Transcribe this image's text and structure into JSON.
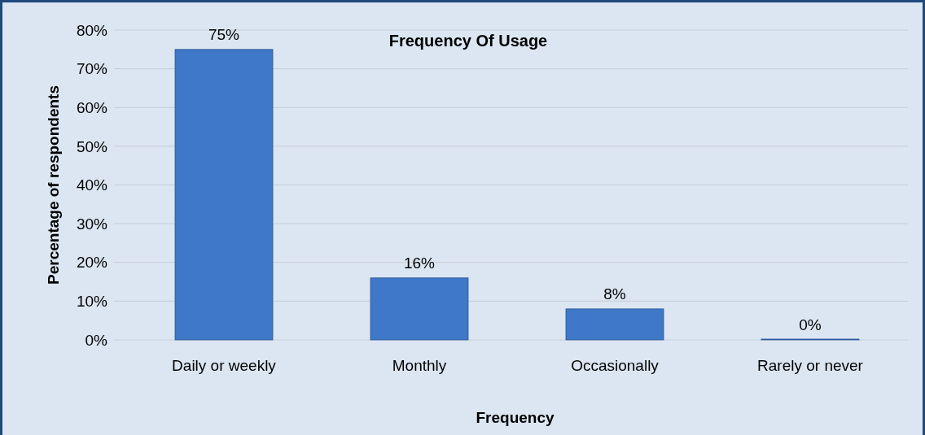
{
  "chart_data": {
    "type": "bar",
    "title": "Frequency Of Usage",
    "xlabel": "Frequency",
    "ylabel": "Percentage of respondents",
    "categories": [
      "Daily or weekly",
      "Monthly",
      "Occasionally",
      "Rarely or never"
    ],
    "values": [
      75,
      16,
      8,
      0
    ],
    "value_labels": [
      "75%",
      "16%",
      "8%",
      "0%"
    ],
    "color": "#3f78c8",
    "ylim": [
      0,
      80
    ],
    "yticks": [
      {
        "value": 0,
        "label": "0%"
      },
      {
        "value": 10,
        "label": "10%"
      },
      {
        "value": 20,
        "label": "20%"
      },
      {
        "value": 30,
        "label": "30%"
      },
      {
        "value": 40,
        "label": "40%"
      },
      {
        "value": 50,
        "label": "50%"
      },
      {
        "value": 60,
        "label": "60%"
      },
      {
        "value": 70,
        "label": "70%"
      },
      {
        "value": 80,
        "label": "80%"
      }
    ],
    "grid": "y"
  }
}
